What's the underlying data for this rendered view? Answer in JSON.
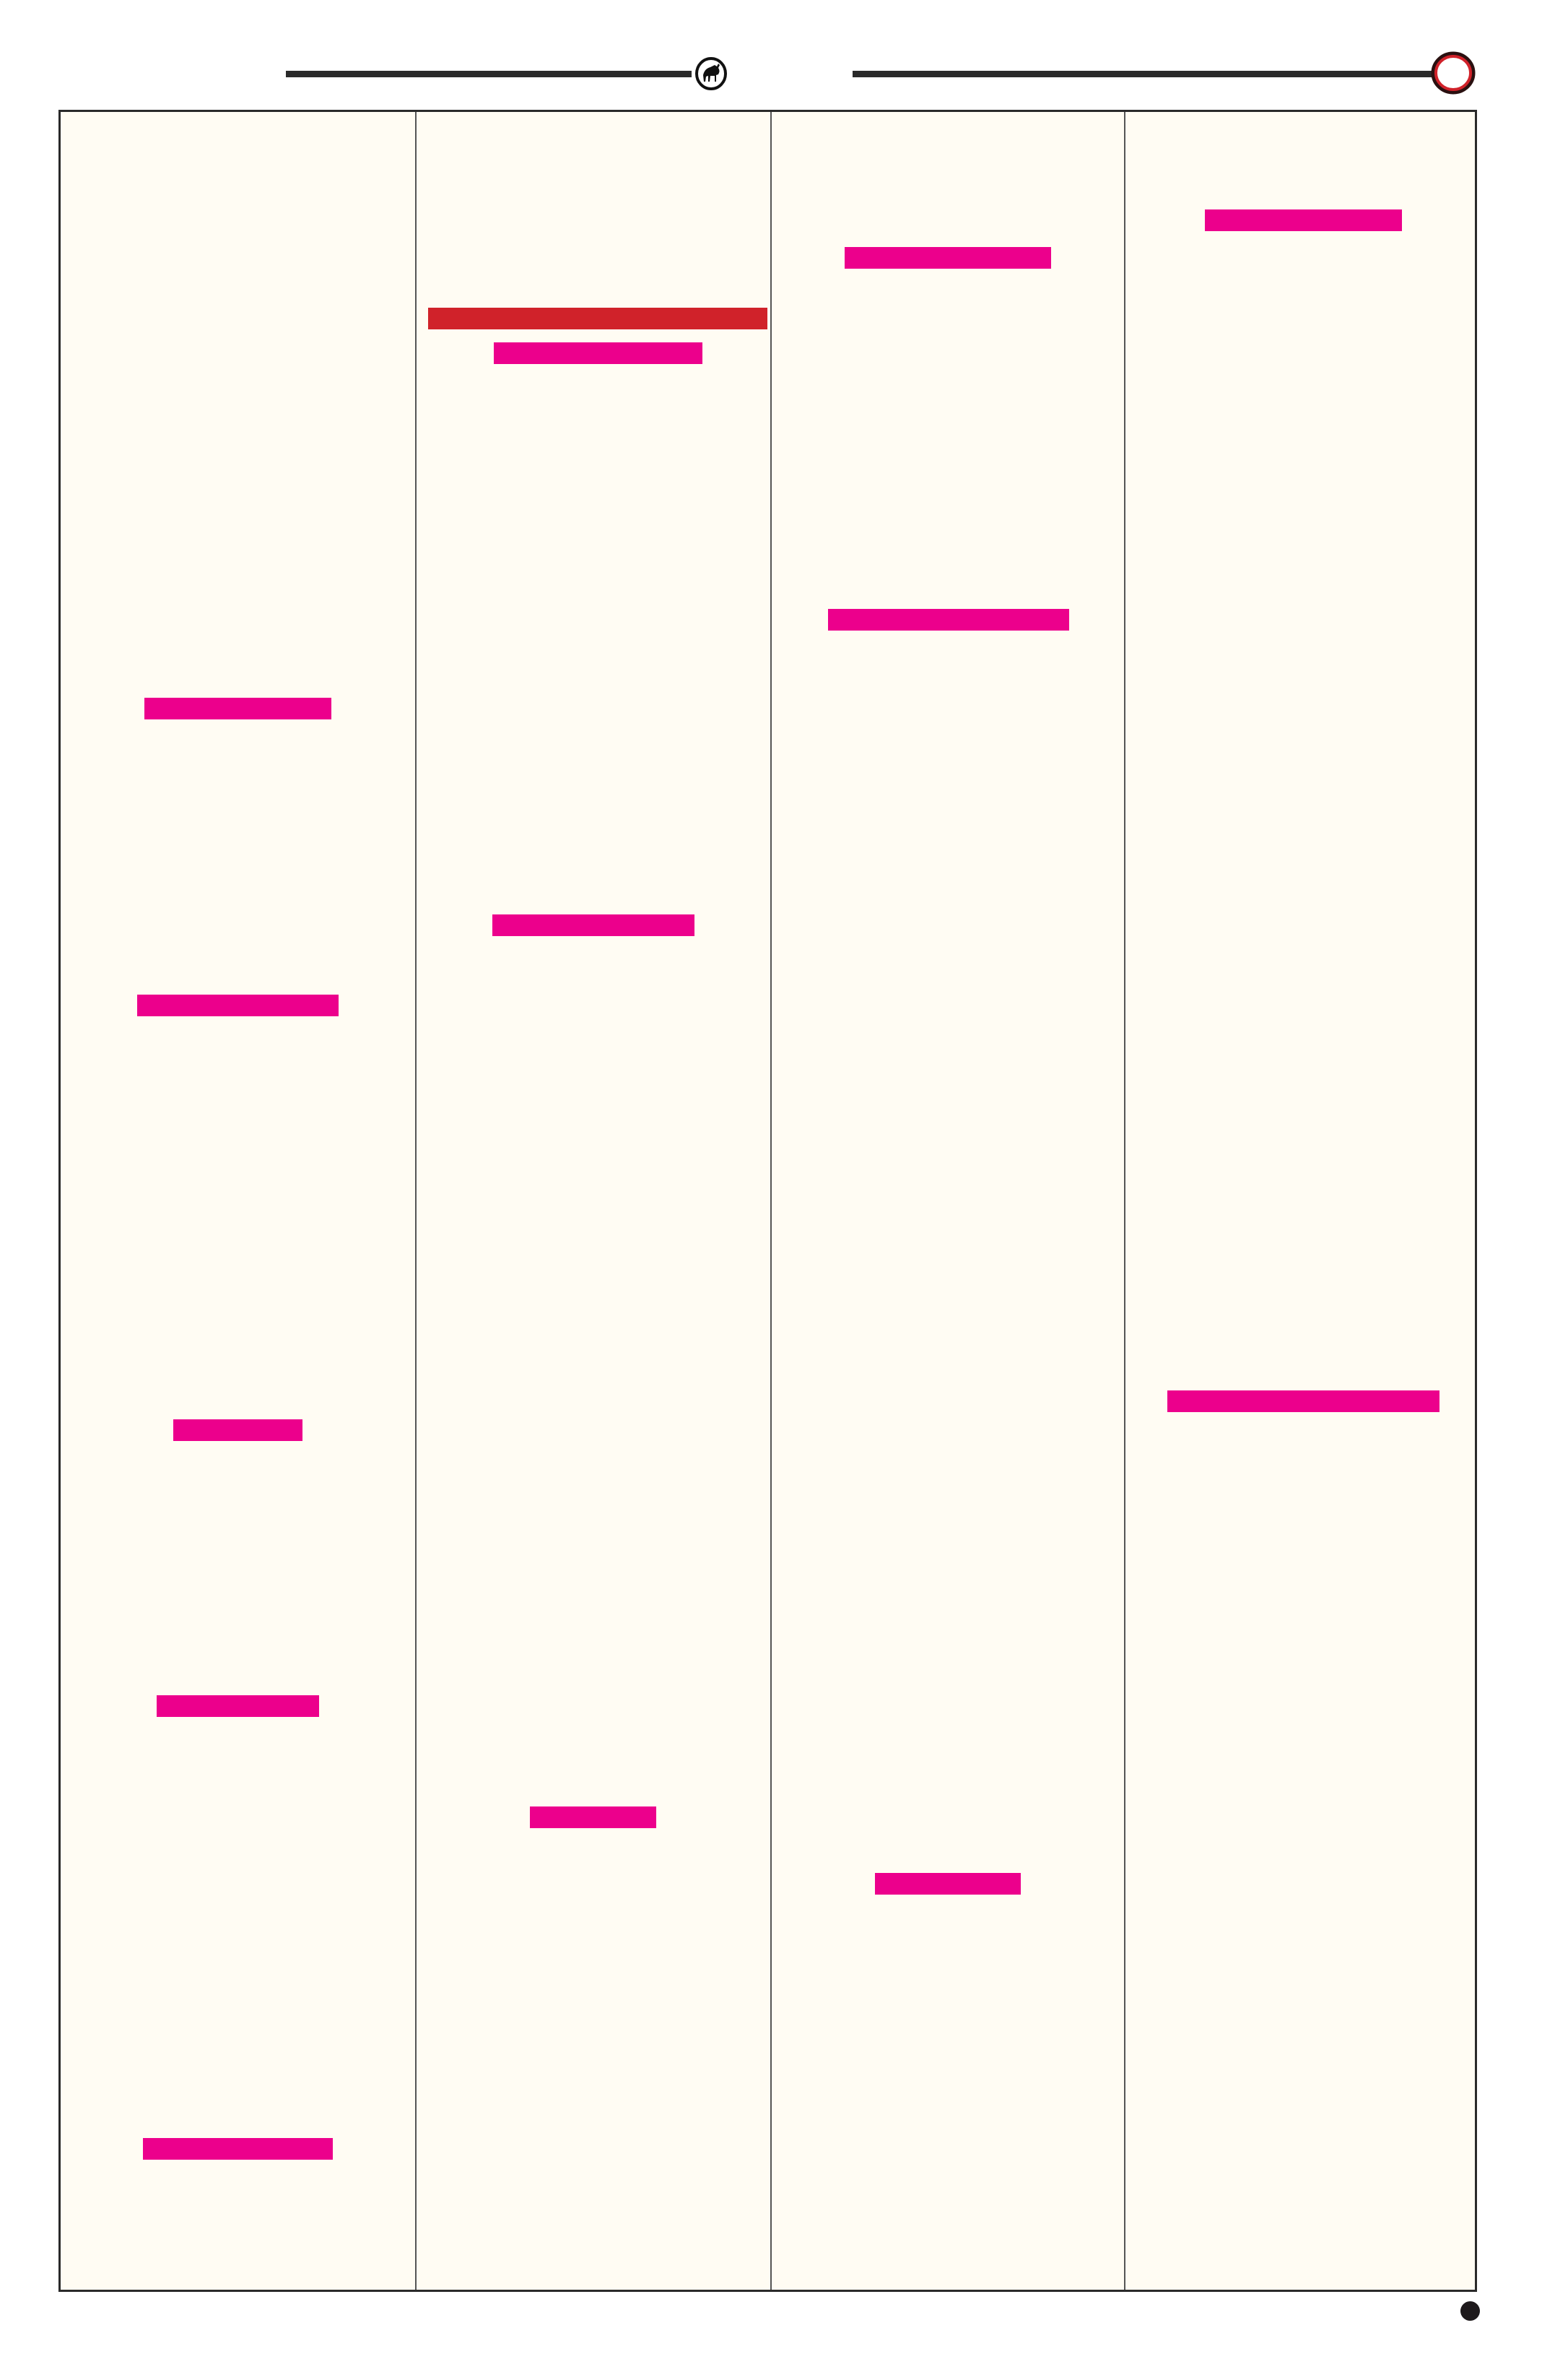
{
  "colors": {
    "page_background": "#ffffff",
    "panel_background": "#fffcf3",
    "frame_line": "#2a2a2a",
    "highlight_pink": "#ec008c",
    "highlight_red": "#d0222a",
    "seal_ring_red": "#d0222a"
  },
  "header": {
    "left_emblem_icon": "bull-emblem-icon",
    "right_emblem_icon": "red-ring-icon"
  },
  "footer": {
    "marker_icon": "filled-dot-icon"
  },
  "columns": [
    {
      "redacted_lines": 5
    },
    {
      "redacted_lines": 4
    },
    {
      "redacted_lines": 3
    },
    {
      "redacted_lines": 2
    }
  ]
}
